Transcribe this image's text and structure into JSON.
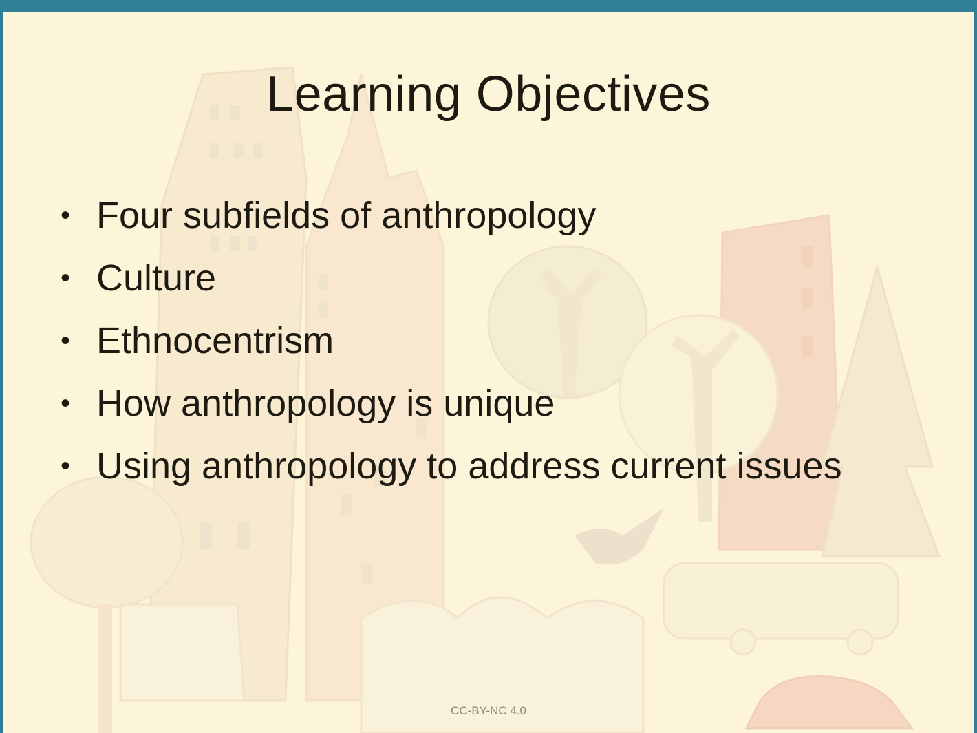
{
  "slide": {
    "title": "Learning Objectives",
    "bullets": [
      "Four subfields of anthropology",
      "Culture",
      "Ethnocentrism",
      "How anthropology is unique",
      "Using anthropology to address current issues"
    ],
    "bullet_glyph": "•",
    "footer": "CC-BY-NC 4.0"
  },
  "theme": {
    "border_color": "#2f7f98",
    "background_color": "#fdf5d9",
    "text_color": "#1d1a12"
  }
}
